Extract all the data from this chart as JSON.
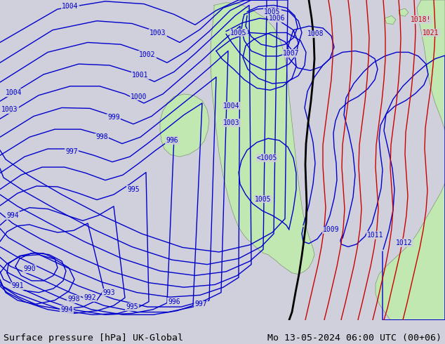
{
  "title_left": "Surface pressure [hPa] UK-Global",
  "title_right": "Mo 13-05-2024 06:00 UTC (00+06)",
  "bg_color": "#d0d0dc",
  "land_color": "#c0e8b0",
  "land_edge": "#888888",
  "blue_color": "#0000cc",
  "red_color": "#cc0000",
  "black_color": "#000000",
  "label_fs": 7.0,
  "title_fs": 9.5,
  "isobar_lw": 1.0,
  "black_lw": 2.0
}
